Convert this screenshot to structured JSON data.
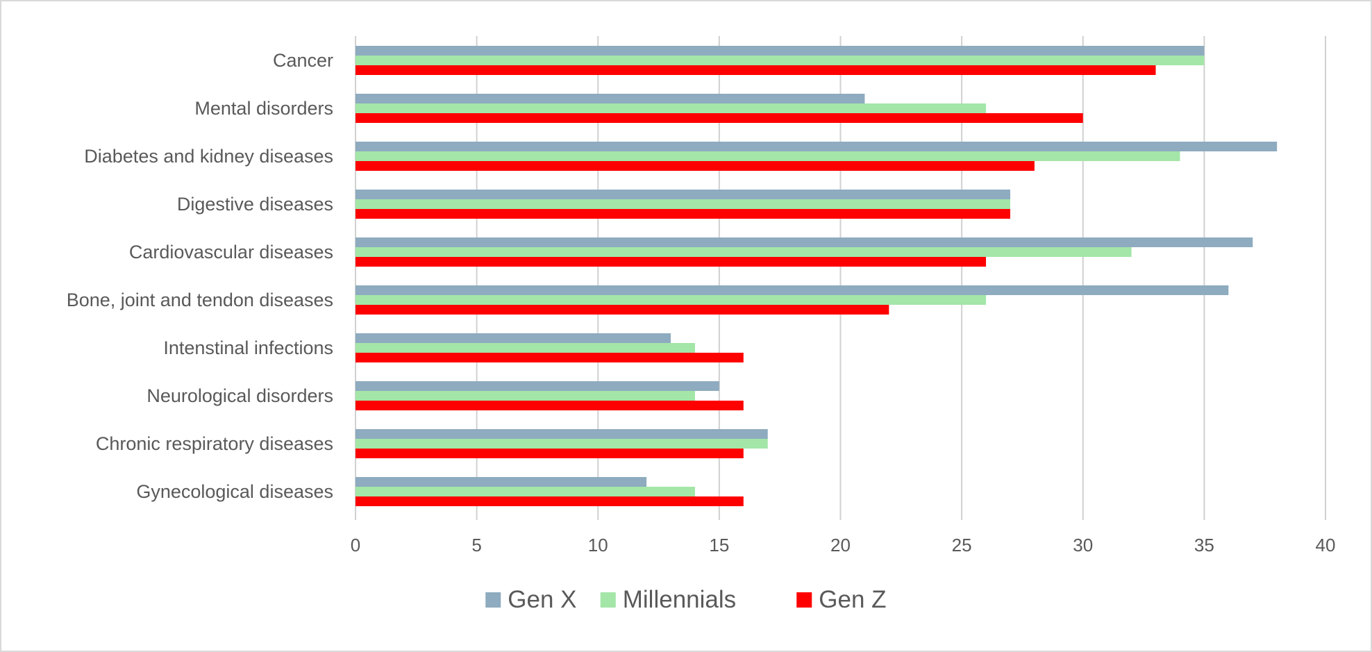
{
  "chart_data": {
    "type": "bar",
    "orientation": "horizontal",
    "categories": [
      "Cancer",
      "Mental disorders",
      "Diabetes and kidney diseases",
      "Digestive diseases",
      "Cardiovascular diseases",
      "Bone, joint and tendon diseases",
      "Intenstinal infections",
      "Neurological disorders",
      "Chronic respiratory diseases",
      "Gynecological diseases"
    ],
    "series": [
      {
        "name": "Gen X",
        "color": "#8eabbf",
        "values": [
          35,
          21,
          38,
          27,
          37,
          36,
          13,
          15,
          17,
          12
        ]
      },
      {
        "name": "Millennials",
        "color": "#a3e6a8",
        "values": [
          35,
          26,
          34,
          27,
          32,
          26,
          14,
          14,
          17,
          14
        ]
      },
      {
        "name": "Gen Z",
        "color": "#ff0000",
        "values": [
          33,
          30,
          28,
          27,
          26,
          22,
          16,
          16,
          16,
          16
        ]
      }
    ],
    "xlim": [
      0,
      40
    ],
    "xticks": [
      "0",
      "5",
      "10",
      "15",
      "20",
      "25",
      "30",
      "35",
      "40"
    ],
    "grid": true,
    "legend_position": "bottom"
  }
}
